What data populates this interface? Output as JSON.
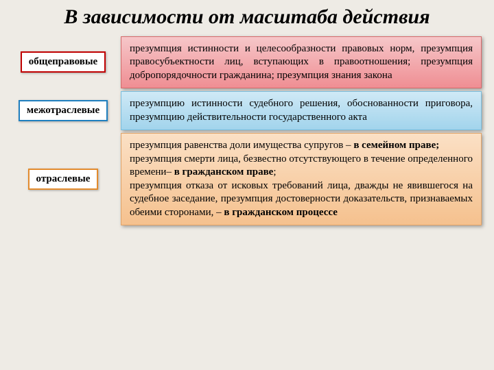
{
  "title": "В зависимости от масштаба действия",
  "rows": [
    {
      "label": "общеправовые",
      "label_border": "#c00000",
      "content_plain": "презумпция истинности и целесообразности правовых норм, презумпция правосубъектности лиц, вступающих в правоотношения; презумпция добропорядочности гражданина; презумпция знания закона",
      "grad_top": "#f6c7c9",
      "grad_bot": "#ef8e93",
      "border_color": "#d46a6a"
    },
    {
      "label": "межотраслевые",
      "label_border": "#1f7fbf",
      "content_plain": "презумпцию истинности судебного решения, обоснованности приговора, презумпцию действительности государственного акта",
      "grad_top": "#cfe9f6",
      "grad_bot": "#a2d4ec",
      "border_color": "#7abedd"
    },
    {
      "label": "отраслевые",
      "label_border": "#e38b2d",
      "content_segments": [
        {
          "t": "презумпция равенства доли имущества супругов – ",
          "b": false
        },
        {
          "t": "в семейном праве;",
          "b": true
        },
        {
          "t": "\nпрезумпция смерти лица, безвестно отсутствующего в течение определенного времени– ",
          "b": false
        },
        {
          "t": "в гражданском праве",
          "b": true
        },
        {
          "t": ";\nпрезумпция отказа от исковых требований лица, дважды не явившегося на судебное заседание, презумпция достоверности доказательств, признаваемых обеими сторонами, – ",
          "b": false
        },
        {
          "t": "в гражданском процессе",
          "b": true
        }
      ],
      "grad_top": "#fbe0c5",
      "grad_bot": "#f5c18e",
      "border_color": "#e0a368"
    }
  ]
}
